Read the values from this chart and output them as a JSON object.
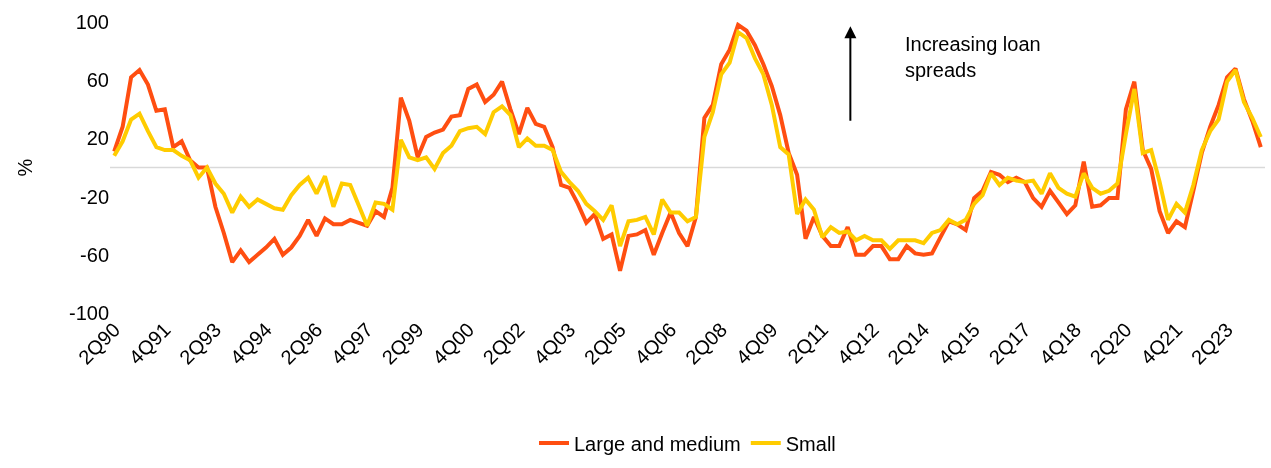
{
  "chart_data": {
    "type": "line",
    "ylabel": "%",
    "categories": [
      "2Q90",
      null,
      null,
      null,
      null,
      null,
      "4Q91",
      null,
      null,
      null,
      null,
      null,
      "2Q93",
      null,
      null,
      null,
      null,
      null,
      "4Q94",
      null,
      null,
      null,
      null,
      null,
      "2Q96",
      null,
      null,
      null,
      null,
      null,
      "4Q97",
      null,
      null,
      null,
      null,
      null,
      "2Q99",
      null,
      null,
      null,
      null,
      null,
      "4Q00",
      null,
      null,
      null,
      null,
      null,
      "2Q02",
      null,
      null,
      null,
      null,
      null,
      "4Q03",
      null,
      null,
      null,
      null,
      null,
      "2Q05",
      null,
      null,
      null,
      null,
      null,
      "4Q06",
      null,
      null,
      null,
      null,
      null,
      "2Q08",
      null,
      null,
      null,
      null,
      null,
      "4Q09",
      null,
      null,
      null,
      null,
      null,
      "2Q11",
      null,
      null,
      null,
      null,
      null,
      "4Q12",
      null,
      null,
      null,
      null,
      null,
      "2Q14",
      null,
      null,
      null,
      null,
      null,
      "4Q15",
      null,
      null,
      null,
      null,
      null,
      "2Q17",
      null,
      null,
      null,
      null,
      null,
      "4Q18",
      null,
      null,
      null,
      null,
      null,
      "2Q20",
      null,
      null,
      null,
      null,
      null,
      "4Q21",
      null,
      null,
      null,
      null,
      null,
      "2Q23",
      null,
      null,
      null,
      null
    ],
    "series": [
      {
        "name": "Large and medium",
        "color": "#ff4e11",
        "values": [
          11,
          28,
          62,
          67,
          57,
          39,
          40,
          14,
          18,
          5,
          0,
          0,
          -27,
          -45,
          -65,
          -57,
          -65,
          -60,
          -55,
          -49,
          -60,
          -55,
          -47,
          -36,
          -47,
          -35,
          -39,
          -39,
          -36,
          -38,
          -40,
          -30,
          -34,
          -14,
          48,
          32,
          7,
          21,
          24,
          26,
          35,
          36,
          54,
          57,
          45,
          50,
          59,
          40,
          23,
          41,
          30,
          28,
          14,
          -12,
          -14,
          -25,
          -38,
          -32,
          -49,
          -46,
          -71,
          -47,
          -46,
          -43,
          -60,
          -45,
          -31,
          -45,
          -54,
          -34,
          34,
          43,
          71,
          81,
          98,
          94,
          84,
          71,
          56,
          36,
          10,
          -5,
          -49,
          -34,
          -47,
          -54,
          -54,
          -41,
          -60,
          -60,
          -54,
          -54,
          -63,
          -63,
          -54,
          -59,
          -60,
          -59,
          -48,
          -37,
          -39,
          -43,
          -21,
          -16,
          -3,
          -5,
          -10,
          -7,
          -10,
          -21,
          -27,
          -16,
          -24,
          -32,
          -26,
          4,
          -27,
          -26,
          -21,
          -21,
          40,
          59,
          12,
          -1,
          -30,
          -45,
          -37,
          -41,
          -16,
          10,
          28,
          43,
          62,
          68,
          47,
          32,
          14
        ]
      },
      {
        "name": "Small",
        "color": "#ffcc00",
        "values": [
          8,
          18,
          33,
          37,
          25,
          14,
          12,
          12,
          8,
          5,
          -7,
          0,
          -11,
          -18,
          -31,
          -20,
          -27,
          -22,
          -25,
          -28,
          -29,
          -19,
          -12,
          -7,
          -18,
          -6,
          -27,
          -11,
          -12,
          -26,
          -40,
          -24,
          -25,
          -29,
          19,
          7,
          5,
          7,
          -1,
          10,
          15,
          25,
          27,
          28,
          23,
          38,
          42,
          36,
          14,
          20,
          15,
          15,
          12,
          -3,
          -10,
          -16,
          -25,
          -30,
          -36,
          -26,
          -54,
          -37,
          -36,
          -34,
          -46,
          -22,
          -31,
          -31,
          -37,
          -34,
          21,
          38,
          64,
          72,
          93,
          89,
          75,
          64,
          43,
          14,
          9,
          -32,
          -22,
          -29,
          -48,
          -41,
          -45,
          -44,
          -50,
          -47,
          -50,
          -50,
          -56,
          -50,
          -50,
          -50,
          -52,
          -45,
          -43,
          -36,
          -39,
          -36,
          -25,
          -19,
          -4,
          -12,
          -7,
          -9,
          -10,
          -9,
          -18,
          -4,
          -14,
          -18,
          -20,
          -4,
          -14,
          -18,
          -16,
          -11,
          23,
          54,
          10,
          12,
          -10,
          -36,
          -25,
          -31,
          -12,
          12,
          25,
          33,
          59,
          67,
          45,
          34,
          21
        ]
      }
    ],
    "ylim": [
      -100,
      100
    ],
    "yticks": [
      -100,
      -60,
      -20,
      20,
      60,
      100
    ],
    "ref_lines": [
      {
        "axis": "y",
        "value": 0,
        "color": "#d9d9d9"
      }
    ],
    "annotations": [
      "Increasing loan spreads"
    ],
    "legend": "bottom"
  }
}
